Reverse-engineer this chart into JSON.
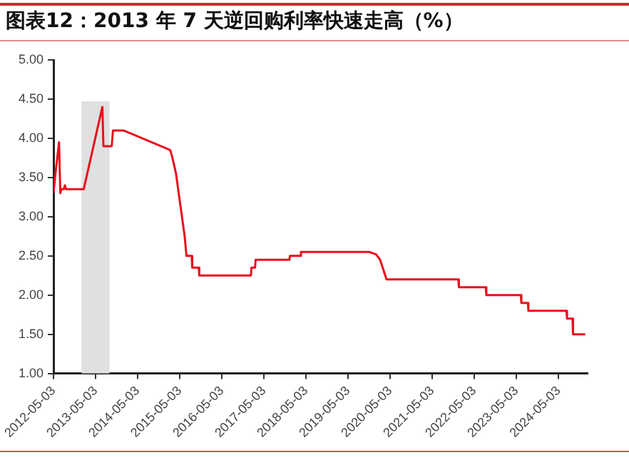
{
  "chart_data": {
    "type": "line",
    "title": "图表12：2013 年 7 天逆回购利率快速走高（%）",
    "x": [
      "2012-05-03",
      "2012-05-20",
      "2012-06-20",
      "2012-07-01",
      "2012-07-10",
      "2012-08-01",
      "2012-08-10",
      "2012-08-20",
      "2013-01-20",
      "2013-07-01",
      "2013-07-10",
      "2013-09-20",
      "2013-10-01",
      "2014-01-01",
      "2015-02-10",
      "2015-03-01",
      "2015-04-01",
      "2015-06-15",
      "2015-07-01",
      "2015-08-15",
      "2015-08-20",
      "2015-10-15",
      "2015-10-20",
      "2017-01-10",
      "2017-01-15",
      "2017-02-15",
      "2017-02-20",
      "2017-12-10",
      "2017-12-15",
      "2018-03-15",
      "2018-03-20",
      "2019-11-01",
      "2020-01-01",
      "2020-02-05",
      "2020-04-01",
      "2021-12-15",
      "2021-12-20",
      "2022-08-10",
      "2022-08-15",
      "2023-06-10",
      "2023-06-15",
      "2023-08-10",
      "2023-08-15",
      "2024-07-10",
      "2024-07-15",
      "2024-09-01",
      "2024-09-05",
      "2024-12-20"
    ],
    "series": [
      {
        "color": "#e8101c",
        "values": [
          3.3,
          3.55,
          3.95,
          3.3,
          3.35,
          3.35,
          3.4,
          3.35,
          3.35,
          4.4,
          3.9,
          3.9,
          4.1,
          4.1,
          3.85,
          3.75,
          3.55,
          2.75,
          2.5,
          2.5,
          2.35,
          2.35,
          2.25,
          2.25,
          2.35,
          2.35,
          2.45,
          2.45,
          2.5,
          2.5,
          2.55,
          2.55,
          2.52,
          2.45,
          2.2,
          2.2,
          2.1,
          2.1,
          2.0,
          2.0,
          1.9,
          1.9,
          1.8,
          1.8,
          1.7,
          1.7,
          1.5,
          1.5
        ]
      }
    ],
    "xlim": [
      "2012-05-03",
      "2025-01-10"
    ],
    "xticks": [
      "2012-05-03",
      "2013-05-03",
      "2014-05-03",
      "2015-05-03",
      "2016-05-03",
      "2017-05-03",
      "2018-05-03",
      "2019-05-03",
      "2020-05-03",
      "2021-05-03",
      "2022-05-03",
      "2023-05-03",
      "2024-05-03"
    ],
    "ylim": [
      1,
      5
    ],
    "yticks": [
      {
        "value": 1,
        "label": "1.00"
      },
      {
        "value": 1.5,
        "label": "1.50"
      },
      {
        "value": 2,
        "label": "2.00"
      },
      {
        "value": 2.5,
        "label": "2.50"
      },
      {
        "value": 3,
        "label": "3.00"
      },
      {
        "value": 3.5,
        "label": "3.50"
      },
      {
        "value": 4,
        "label": "4.00"
      },
      {
        "value": 4.5,
        "label": "4.50"
      },
      {
        "value": 5,
        "label": "5.00"
      }
    ],
    "bands": [
      {
        "axis": "x",
        "from": "2013-01-01",
        "to": "2013-09-01",
        "color": "#e0e0e0"
      }
    ],
    "grid": false,
    "legend": false,
    "marker": "none",
    "line_style": "solid"
  }
}
